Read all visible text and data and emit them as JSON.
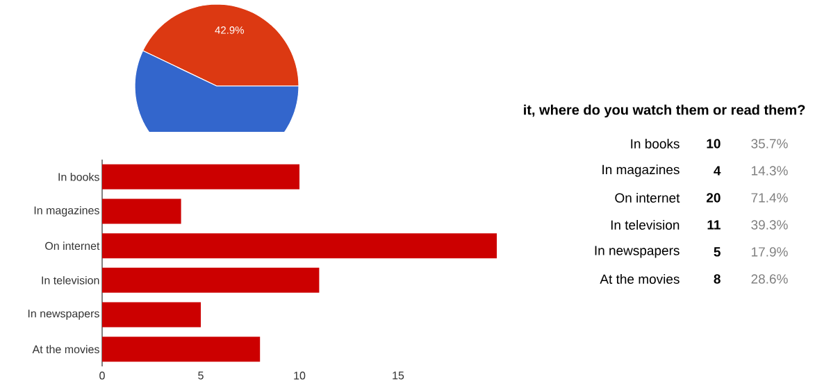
{
  "chart_data": [
    {
      "type": "pie",
      "categories": [
        null,
        null
      ],
      "values": [
        42.9,
        57.1
      ],
      "colors": [
        "#dc3912",
        "#3366cc"
      ],
      "value_labels": [
        "42.9%",
        null
      ]
    },
    {
      "type": "bar",
      "orientation": "horizontal",
      "categories": [
        "In books",
        "In magazines",
        "On internet",
        "In television",
        "In newspapers",
        "At the movies"
      ],
      "values": [
        10,
        4,
        20,
        11,
        5,
        8
      ],
      "color": "#cc0000",
      "xlim": [
        0,
        20
      ],
      "xticks": [
        0,
        5,
        10,
        15
      ],
      "grid": false
    },
    {
      "type": "other",
      "title": "it, where do you watch them or read them?",
      "categories": [
        "In books",
        "In magazines",
        "On internet",
        "In television",
        "In newspapers",
        "At the movies"
      ],
      "data_labels": true,
      "series": [
        {
          "values": [
            10,
            4,
            20,
            11,
            5,
            8
          ]
        },
        {
          "values": [
            35.7,
            14.3,
            71.4,
            39.3,
            17.9,
            28.6
          ],
          "value_labels": [
            "35.7%",
            "14.3%",
            "71.4%",
            "39.3%",
            "17.9%",
            "28.6%"
          ]
        }
      ]
    }
  ]
}
